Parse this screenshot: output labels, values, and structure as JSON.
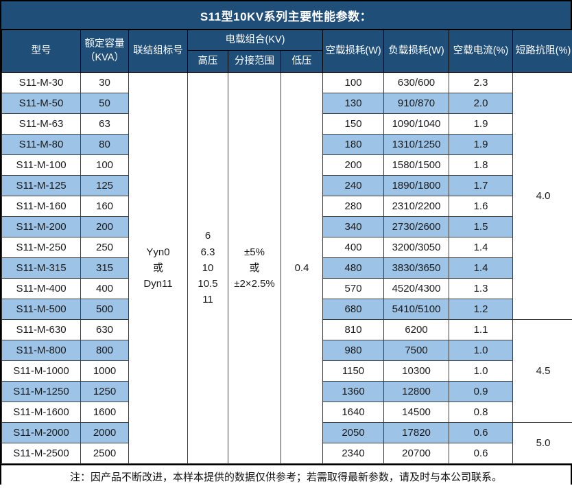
{
  "title": "S11型10KV系列主要性能参数：",
  "colors": {
    "header_bg": "#1F4E79",
    "alt_row_bg": "#9DC3E6",
    "border": "#000000",
    "header_text": "#ffffff"
  },
  "table": {
    "headers": {
      "model": "型号",
      "capacity": "额定容量\n（KVA）",
      "connection": "联结组标号",
      "voltage_group": "电载组合(KV)",
      "hv": "高压",
      "tap_range": "分接范围",
      "lv": "低压",
      "no_load_loss": "空载损耗(W)",
      "load_loss": "负载损耗(W)",
      "no_load_current": "空载电流(%)",
      "impedance": "短路抗阻(%)"
    },
    "merged": {
      "connection": "Yyn0\n或\nDyn11",
      "hv": "6\n6.3\n10\n10.5\n11",
      "tap_range": "±5%\n或\n±2×2.5%",
      "lv": "0.4"
    },
    "impedance_spans": [
      {
        "value": "4.0",
        "span": 12
      },
      {
        "value": "4.5",
        "span": 5
      },
      {
        "value": "5.0",
        "span": 2
      }
    ],
    "rows": [
      {
        "model": "S11-M-30",
        "capacity": "30",
        "no_load_loss": "100",
        "load_loss": "630/600",
        "no_load_current": "2.3"
      },
      {
        "model": "S11-M-50",
        "capacity": "50",
        "no_load_loss": "130",
        "load_loss": "910/870",
        "no_load_current": "2.0"
      },
      {
        "model": "S11-M-63",
        "capacity": "63",
        "no_load_loss": "150",
        "load_loss": "1090/1040",
        "no_load_current": "1.9"
      },
      {
        "model": "S11-M-80",
        "capacity": "80",
        "no_load_loss": "180",
        "load_loss": "1310/1250",
        "no_load_current": "1.9"
      },
      {
        "model": "S11-M-100",
        "capacity": "100",
        "no_load_loss": "200",
        "load_loss": "1580/1500",
        "no_load_current": "1.8"
      },
      {
        "model": "S11-M-125",
        "capacity": "125",
        "no_load_loss": "240",
        "load_loss": "1890/1800",
        "no_load_current": "1.7"
      },
      {
        "model": "S11-M-160",
        "capacity": "160",
        "no_load_loss": "280",
        "load_loss": "2310/2200",
        "no_load_current": "1.6"
      },
      {
        "model": "S11-M-200",
        "capacity": "200",
        "no_load_loss": "340",
        "load_loss": "2730/2600",
        "no_load_current": "1.5"
      },
      {
        "model": "S11-M-250",
        "capacity": "250",
        "no_load_loss": "400",
        "load_loss": "3200/3050",
        "no_load_current": "1.4"
      },
      {
        "model": "S11-M-315",
        "capacity": "315",
        "no_load_loss": "480",
        "load_loss": "3830/3650",
        "no_load_current": "1.4"
      },
      {
        "model": "S11-M-400",
        "capacity": "400",
        "no_load_loss": "570",
        "load_loss": "4520/4300",
        "no_load_current": "1.3"
      },
      {
        "model": "S11-M-500",
        "capacity": "500",
        "no_load_loss": "680",
        "load_loss": "5410/5100",
        "no_load_current": "1.2"
      },
      {
        "model": "S11-M-630",
        "capacity": "630",
        "no_load_loss": "810",
        "load_loss": "6200",
        "no_load_current": "1.1"
      },
      {
        "model": "S11-M-800",
        "capacity": "800",
        "no_load_loss": "980",
        "load_loss": "7500",
        "no_load_current": "1.0"
      },
      {
        "model": "S11-M-1000",
        "capacity": "1000",
        "no_load_loss": "1150",
        "load_loss": "10300",
        "no_load_current": "1.0"
      },
      {
        "model": "S11-M-1250",
        "capacity": "1250",
        "no_load_loss": "1360",
        "load_loss": "12800",
        "no_load_current": "0.9"
      },
      {
        "model": "S11-M-1600",
        "capacity": "1600",
        "no_load_loss": "1640",
        "load_loss": "14500",
        "no_load_current": "0.8"
      },
      {
        "model": "S11-M-2000",
        "capacity": "2000",
        "no_load_loss": "2050",
        "load_loss": "17820",
        "no_load_current": "0.6"
      },
      {
        "model": "S11-M-2500",
        "capacity": "2500",
        "no_load_loss": "2340",
        "load_loss": "20700",
        "no_load_current": "0.6"
      }
    ]
  },
  "footer": "注：因产品不断改进，本样本提供的数据仅供参考；若需取得最新参数，请及时与本公司联系。"
}
